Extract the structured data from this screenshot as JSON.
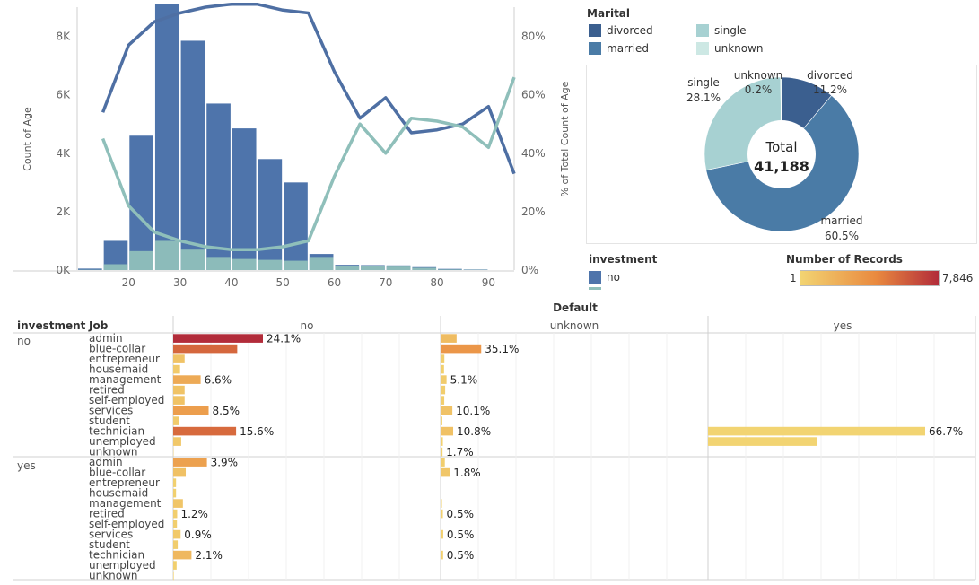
{
  "colors": {
    "divorced": "#3b5f8f",
    "married": "#4a7ba6",
    "single": "#a7d1d2",
    "unknown": "#cde8e4",
    "hist_bar": "#4e74ab",
    "hist_bar_light": "#8fbfba",
    "line_dark": "#4e6fa3",
    "line_light": "#8fbfba",
    "gradient_low": "#f2d472",
    "gradient_mid": "#e9893f",
    "gradient_high": "#b22c3a",
    "grid": "#e8e8e8"
  },
  "histogram": {
    "ylabel_left": "Count of Age",
    "ylabel_right": "% of Total Count of Age",
    "y_ticks_left": [
      "0K",
      "2K",
      "4K",
      "6K",
      "8K"
    ],
    "y_ticks_right": [
      "0%",
      "20%",
      "40%",
      "60%",
      "80%"
    ],
    "x_ticks": [
      "20",
      "30",
      "40",
      "50",
      "60",
      "70",
      "80",
      "90"
    ]
  },
  "chart_data": [
    {
      "type": "bar",
      "x": [
        15,
        20,
        25,
        30,
        35,
        40,
        45,
        50,
        55,
        60,
        65,
        70,
        75,
        80,
        85,
        90
      ],
      "series": [
        {
          "values": [
            50,
            1000,
            4600,
            9100,
            7850,
            5700,
            4850,
            3800,
            3000,
            550,
            180,
            170,
            160,
            100,
            40,
            20
          ]
        },
        {
          "values": [
            10,
            200,
            650,
            1000,
            700,
            450,
            380,
            350,
            320,
            450,
            150,
            130,
            120,
            80,
            20,
            10
          ]
        }
      ],
      "ylim": [
        0,
        9000
      ],
      "y2lim": [
        0,
        90
      ],
      "lines": [
        {
          "x": [
            15,
            20,
            25,
            30,
            35,
            40,
            45,
            50,
            55,
            60,
            65,
            70,
            75,
            80,
            85,
            90,
            95
          ],
          "values": [
            54,
            77,
            85,
            88,
            90,
            91,
            91,
            89,
            88,
            68,
            52,
            59,
            47,
            48,
            50,
            56,
            33
          ]
        },
        {
          "x": [
            15,
            20,
            25,
            30,
            35,
            40,
            45,
            50,
            55,
            60,
            65,
            70,
            75,
            80,
            85,
            90,
            95
          ],
          "values": [
            45,
            22,
            13,
            10,
            8,
            7,
            7,
            8,
            10,
            32,
            50,
            40,
            52,
            51,
            49,
            42,
            66
          ]
        }
      ]
    },
    {
      "type": "pie",
      "title": "Marital",
      "labels": [
        "divorced",
        "married",
        "single",
        "unknown"
      ],
      "values": [
        11.2,
        60.5,
        28.1,
        0.2
      ],
      "value_labels": [
        "11.2%",
        "60.5%",
        "28.1%",
        "0.2%"
      ],
      "center_label": "Total",
      "center_value": "41,188"
    },
    {
      "type": "bar",
      "title": "Default",
      "row_header": "investment",
      "col_header": "Job",
      "columns": [
        "no",
        "unknown",
        "yes"
      ],
      "groups": [
        "no",
        "yes"
      ],
      "jobs": [
        "admin",
        "blue-collar",
        "entrepreneur",
        "housemaid",
        "management",
        "retired",
        "self-employed",
        "services",
        "student",
        "technician",
        "unemployed",
        "unknown"
      ],
      "values": {
        "no": {
          "no": [
            7846,
            5600,
            1000,
            600,
            2400,
            1000,
            1000,
            3100,
            500,
            5500,
            700,
            30
          ],
          "unknown": [
            1400,
            3550,
            330,
            300,
            520,
            400,
            320,
            1030,
            150,
            1100,
            200,
            170
          ],
          "yes": [
            0,
            0,
            0,
            0,
            0,
            0,
            0,
            0,
            0,
            2,
            1,
            0
          ]
        },
        "yes": {
          "no": [
            2950,
            1100,
            250,
            250,
            850,
            350,
            330,
            650,
            400,
            1600,
            300,
            50
          ],
          "unknown": [
            370,
            800,
            40,
            50,
            120,
            200,
            60,
            230,
            50,
            220,
            20,
            40
          ],
          "yes": [
            0,
            0,
            0,
            0,
            0,
            0,
            0,
            0,
            0,
            0,
            0,
            0
          ]
        }
      },
      "bar_scale": [
        0,
        7846,
        3.0
      ],
      "labels": {
        "no": {
          "no": [
            "24.1%",
            "",
            "",
            "",
            "6.6%",
            "",
            "",
            "8.5%",
            "",
            "15.6%",
            "",
            ""
          ],
          "unknown": [
            "",
            "35.1%",
            "",
            "",
            "5.1%",
            "",
            "",
            "10.1%",
            "",
            "10.8%",
            "",
            "1.7%"
          ],
          "yes": [
            "",
            "",
            "",
            "",
            "",
            "",
            "",
            "",
            "",
            "66.7%",
            "",
            ""
          ]
        },
        "yes": {
          "no": [
            "3.9%",
            "",
            "",
            "",
            "",
            "1.2%",
            "",
            "0.9%",
            "",
            "2.1%",
            "",
            ""
          ],
          "unknown": [
            "",
            "1.8%",
            "",
            "",
            "",
            "0.5%",
            "",
            "0.5%",
            "",
            "0.5%",
            "",
            ""
          ],
          "yes": [
            "",
            "",
            "",
            "",
            "",
            "",
            "",
            "",
            "",
            "",
            "",
            ""
          ]
        }
      }
    }
  ],
  "marital_legend": {
    "title": "Marital",
    "items": [
      {
        "label": "divorced"
      },
      {
        "label": "single"
      },
      {
        "label": "married"
      },
      {
        "label": "unknown"
      }
    ]
  },
  "pie_labels": {
    "divorced": {
      "name": "divorced",
      "pct": "11.2%"
    },
    "married": {
      "name": "married",
      "pct": "60.5%"
    },
    "single": {
      "name": "single",
      "pct": "28.1%"
    },
    "unknown": {
      "name": "unknown",
      "pct": "0.2%"
    },
    "total_label": "Total",
    "total_value": "41,188"
  },
  "investment_legend": {
    "title": "investment",
    "items": [
      "no"
    ]
  },
  "records_legend": {
    "title": "Number of Records",
    "min": "1",
    "max": "7,846"
  },
  "table": {
    "title": "Default",
    "row_header": "investment",
    "col_header": "Job",
    "columns": [
      "no",
      "unknown",
      "yes"
    ],
    "groups": [
      "no",
      "yes"
    ]
  }
}
